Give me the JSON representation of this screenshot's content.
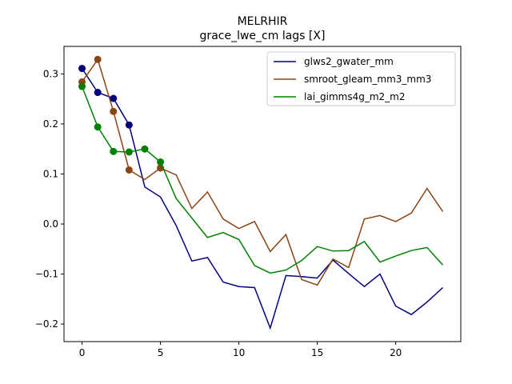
{
  "chart_data": {
    "type": "line",
    "title": "MELRHIR",
    "subtitle": "grace_lwe_cm lags [X]",
    "xlabel": "",
    "ylabel": "",
    "xlim": [
      -1.15,
      24.15
    ],
    "ylim": [
      -0.235,
      0.355
    ],
    "xticks": [
      0,
      5,
      10,
      15,
      20
    ],
    "yticks": [
      -0.2,
      -0.1,
      0.0,
      0.1,
      0.2,
      0.3
    ],
    "ytick_labels": [
      "−0.2",
      "−0.1",
      "0.0",
      "0.1",
      "0.2",
      "0.3"
    ],
    "legend_position": "top-right",
    "x": [
      0,
      1,
      2,
      3,
      4,
      5,
      6,
      7,
      8,
      9,
      10,
      11,
      12,
      13,
      14,
      15,
      16,
      17,
      18,
      19,
      20,
      21,
      22,
      23
    ],
    "series": [
      {
        "name": "glws2_gwater_mm",
        "color": "#000080",
        "values": [
          0.311,
          0.263,
          0.251,
          0.198,
          0.074,
          0.054,
          -0.003,
          -0.074,
          -0.067,
          -0.116,
          -0.125,
          -0.127,
          -0.208,
          -0.103,
          -0.105,
          -0.108,
          -0.072,
          -0.099,
          -0.125,
          -0.1,
          -0.164,
          -0.181,
          -0.156,
          -0.127
        ],
        "markers": [
          0,
          1,
          2,
          3
        ]
      },
      {
        "name": "smroot_gleam_mm3_mm3",
        "color": "#8b4513",
        "values": [
          0.284,
          0.329,
          0.225,
          0.108,
          0.089,
          0.112,
          0.098,
          0.031,
          0.064,
          0.01,
          -0.009,
          0.005,
          -0.055,
          -0.021,
          -0.111,
          -0.122,
          -0.07,
          -0.087,
          0.01,
          0.017,
          0.005,
          0.022,
          0.071,
          0.025
        ],
        "markers": [
          0,
          1,
          2,
          3,
          5
        ]
      },
      {
        "name": "lai_gimms4g_m2_m2",
        "color": "#008000",
        "values": [
          0.275,
          0.194,
          0.145,
          0.144,
          0.15,
          0.124,
          0.051,
          0.012,
          -0.027,
          -0.017,
          -0.031,
          -0.083,
          -0.098,
          -0.092,
          -0.073,
          -0.045,
          -0.054,
          -0.053,
          -0.035,
          -0.076,
          -0.064,
          -0.053,
          -0.047,
          -0.082
        ],
        "markers": [
          0,
          1,
          2,
          3,
          4,
          5
        ]
      }
    ]
  }
}
